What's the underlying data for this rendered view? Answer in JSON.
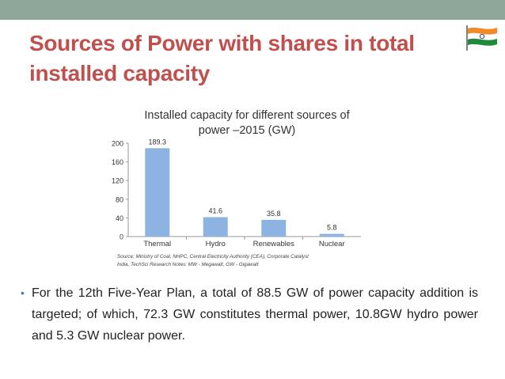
{
  "slide": {
    "title": "Sources of Power with shares in total installed capacity",
    "bullet": "For the 12th Five-Year Plan, a total of 88.5 GW of power capacity addition is targeted; of which, 72.3 GW constitutes thermal power, 10.8GW hydro power and 5.3 GW nuclear power.",
    "bullet_marker": "•"
  },
  "colors": {
    "top_bar": "#8fa79a",
    "title": "#c0504d",
    "bar": "#8db3e2",
    "flag_saffron": "#f08a24",
    "flag_green": "#1f8a3b",
    "flag_chakra": "#1a237e"
  },
  "flag_icon": "india-flag-icon",
  "chart_data": {
    "type": "bar",
    "title": "Installed capacity for different sources of power –2015 (GW)",
    "title_lines": [
      "Installed capacity for different sources of",
      "power –2015 (GW)"
    ],
    "categories": [
      "Thermal",
      "Hydro",
      "Renewables",
      "Nuclear"
    ],
    "values": [
      189.3,
      41.6,
      35.8,
      5.8
    ],
    "value_labels": [
      "189.3",
      "41.6",
      "35.8",
      "5.8"
    ],
    "y_ticks": [
      0,
      40,
      80,
      120,
      160,
      200
    ],
    "ylim": [
      0,
      200
    ],
    "grid": false,
    "xlabel": "",
    "ylabel": "",
    "source_lines": [
      "Source: Ministry of Coal, NHPC, Central Electricity Authority (CEA), Corporate Catalyst",
      "India, TechSci Research Notes: MW - Megawatt, GW - Gigawatt"
    ]
  }
}
